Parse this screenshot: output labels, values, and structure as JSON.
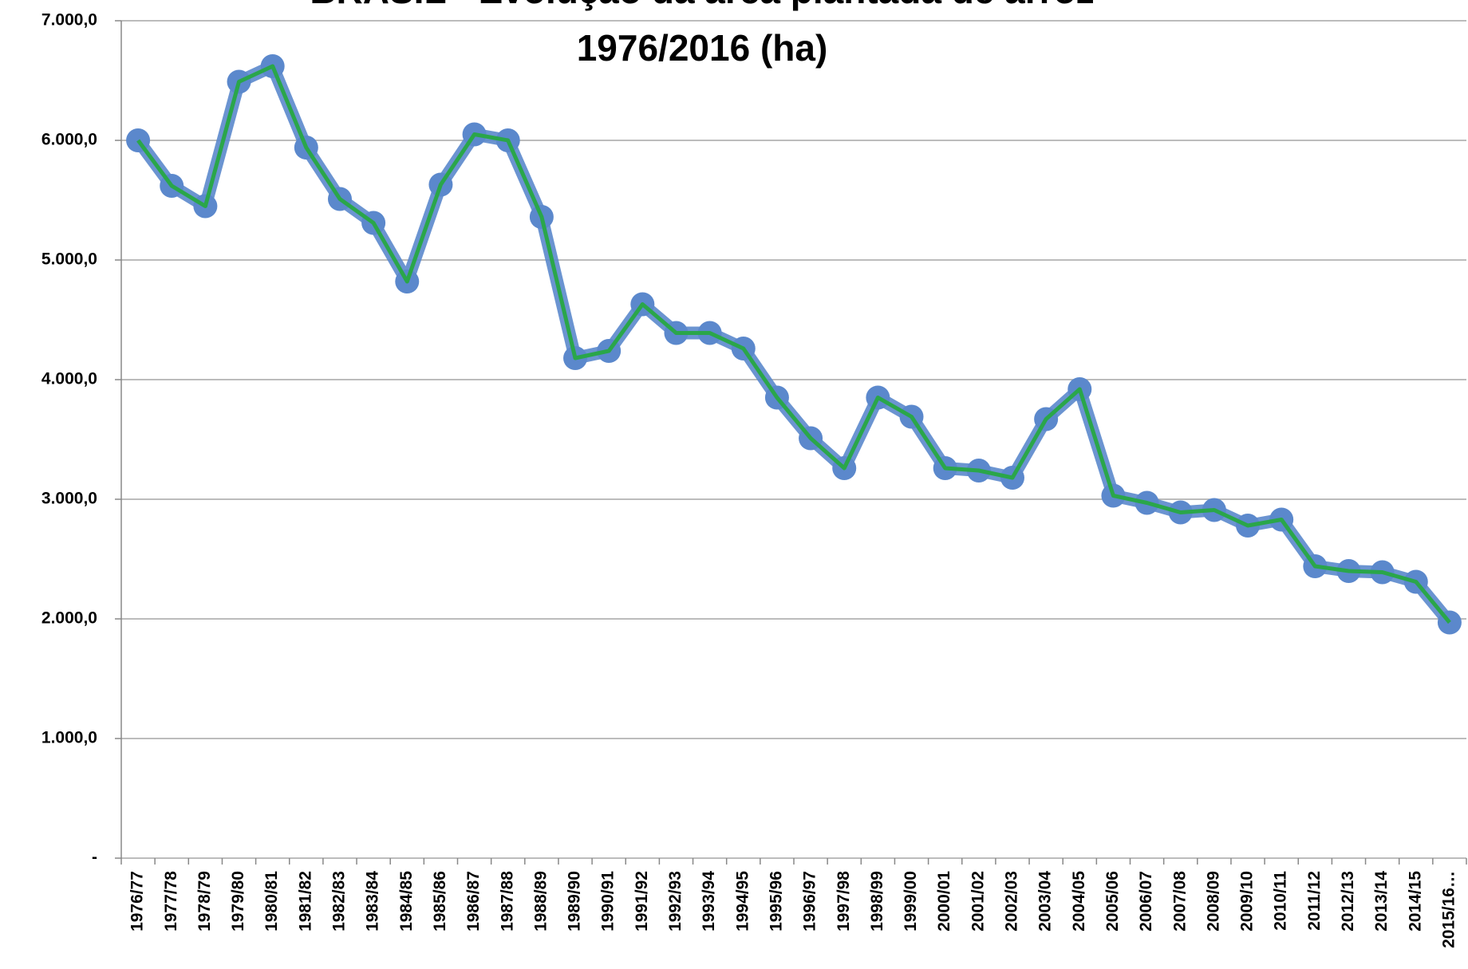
{
  "chart_data": {
    "type": "line",
    "title": "BRASIL - Evolução da área plantada de arroz",
    "subtitle": "1976/2016 (ha)",
    "categories": [
      "1976/77",
      "1977/78",
      "1978/79",
      "1979/80",
      "1980/81",
      "1981/82",
      "1982/83",
      "1983/84",
      "1984/85",
      "1985/86",
      "1986/87",
      "1987/88",
      "1988/89",
      "1989/90",
      "1990/91",
      "1991/92",
      "1992/93",
      "1993/94",
      "1994/95",
      "1995/96",
      "1996/97",
      "1997/98",
      "1998/99",
      "1999/00",
      "2000/01",
      "2001/02",
      "2002/03",
      "2003/04",
      "2004/05",
      "2005/06",
      "2006/07",
      "2007/08",
      "2008/09",
      "2009/10",
      "2010/11",
      "2011/12",
      "2012/13",
      "2013/14",
      "2014/15",
      "2015/16…"
    ],
    "series": [
      {
        "color": "#2aa64a",
        "marker_color": "#5b88cc",
        "values": [
          6000,
          5620,
          5450,
          6490,
          6620,
          5940,
          5510,
          5310,
          4820,
          5630,
          6050,
          6000,
          5360,
          4180,
          4240,
          4630,
          4390,
          4390,
          4260,
          3850,
          3510,
          3260,
          3850,
          3690,
          3260,
          3240,
          3180,
          3670,
          3920,
          3030,
          2970,
          2890,
          2910,
          2780,
          2830,
          2440,
          2400,
          2390,
          2310,
          1970
        ]
      }
    ],
    "ylim": [
      0,
      7000
    ],
    "yticks": [
      {
        "value": 0,
        "label": "-"
      },
      {
        "value": 1000,
        "label": "1.000,0"
      },
      {
        "value": 2000,
        "label": "2.000,0"
      },
      {
        "value": 3000,
        "label": "3.000,0"
      },
      {
        "value": 4000,
        "label": "4.000,0"
      },
      {
        "value": 5000,
        "label": "5.000,0"
      },
      {
        "value": 6000,
        "label": "6.000,0"
      },
      {
        "value": 7000,
        "label": "7.000,0"
      }
    ],
    "grid": true
  }
}
